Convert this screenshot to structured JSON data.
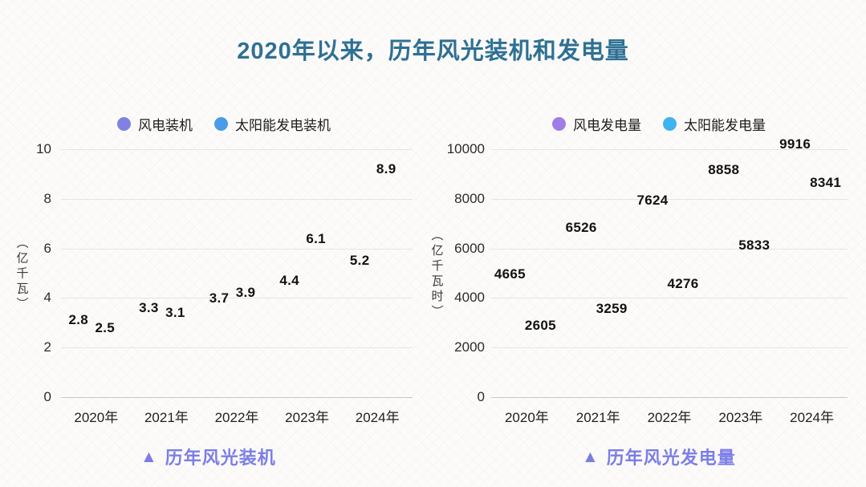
{
  "title": "2020年以来，历年风光装机和发电量",
  "colors": {
    "title": "#2e7094",
    "caption": "#7b7ee7",
    "gridline": "#e5e4e3",
    "axis_line": "#c9c8c7",
    "data_label": "#121212",
    "wind_installed_dot": "#7f81e3",
    "solar_installed_dot": "#4a9ce8",
    "wind_generation_dot": "#a07ce8",
    "solar_generation_dot": "#3fb2f0"
  },
  "chart_data": [
    {
      "type": "scatter",
      "caption_marker": "▲",
      "caption": "历年风光装机",
      "ylabel": "（亿千瓦）",
      "categories": [
        "2020年",
        "2021年",
        "2022年",
        "2023年",
        "2024年"
      ],
      "series": [
        {
          "name": "风电装机",
          "color": "#7f81e3",
          "values": [
            2.8,
            3.3,
            3.7,
            4.4,
            5.2
          ]
        },
        {
          "name": "太阳能发电装机",
          "color": "#4a9ce8",
          "values": [
            2.5,
            3.1,
            3.9,
            6.1,
            8.9
          ]
        }
      ],
      "ylim": [
        0,
        10
      ],
      "yticks": [
        0,
        2,
        4,
        6,
        8,
        10
      ],
      "grid": true,
      "legend_position": "top",
      "labels_visible": true
    },
    {
      "type": "scatter",
      "caption_marker": "▲",
      "caption": "历年风光发电量",
      "ylabel": "（亿千瓦时）",
      "categories": [
        "2020年",
        "2021年",
        "2022年",
        "2023年",
        "2024年"
      ],
      "series": [
        {
          "name": "风电发电量",
          "color": "#a07ce8",
          "values": [
            4665,
            6526,
            7624,
            8858,
            9916
          ]
        },
        {
          "name": "太阳能发电量",
          "color": "#3fb2f0",
          "values": [
            2605,
            3259,
            4276,
            5833,
            8341
          ]
        }
      ],
      "ylim": [
        0,
        10000
      ],
      "yticks": [
        0,
        2000,
        4000,
        6000,
        8000,
        10000
      ],
      "grid": true,
      "legend_position": "top",
      "labels_visible": true
    }
  ]
}
